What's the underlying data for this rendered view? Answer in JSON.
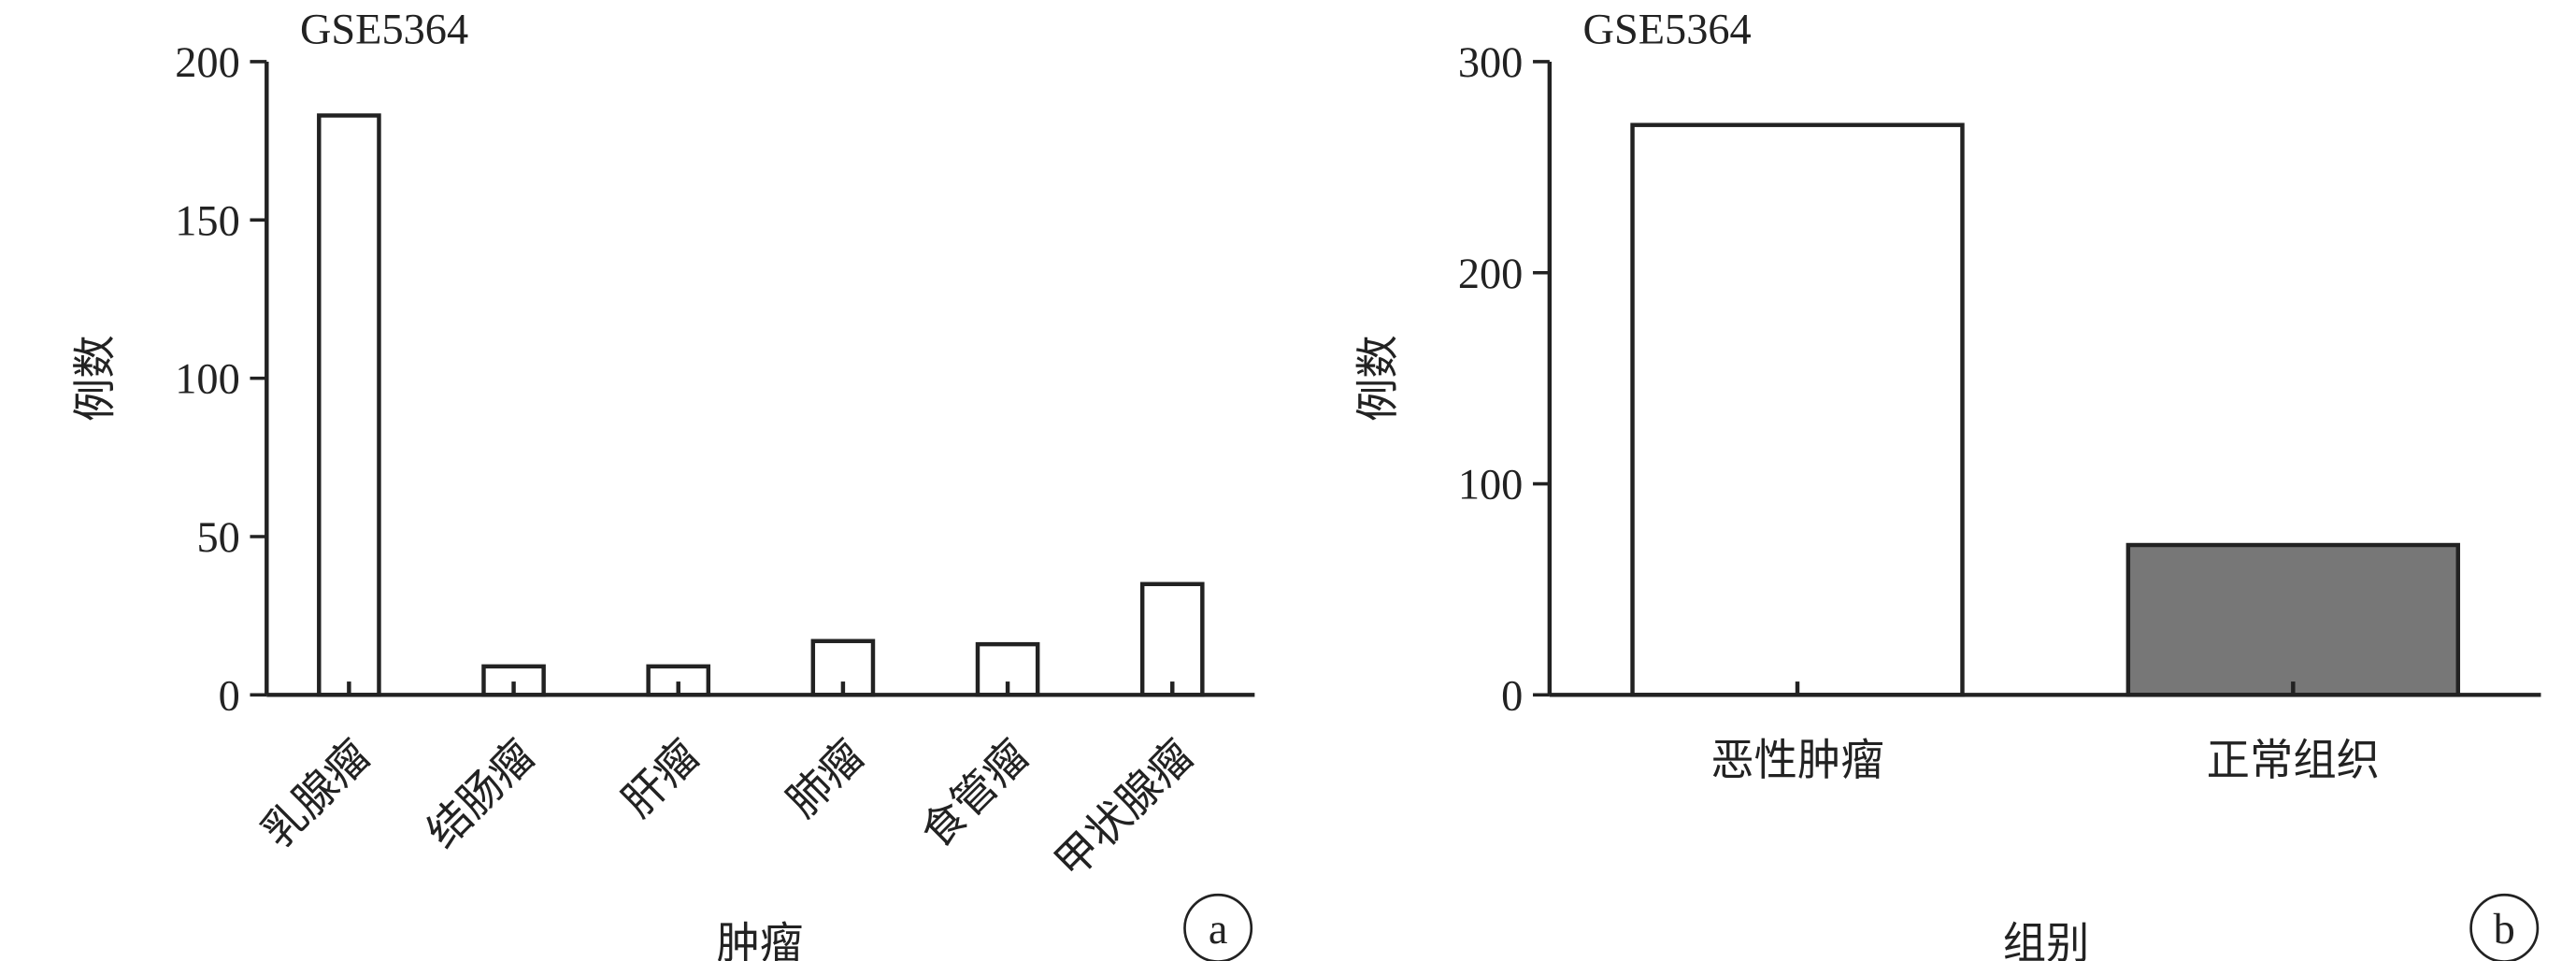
{
  "chart_data": [
    {
      "type": "bar",
      "title": "GSE5364",
      "y_label": "例数",
      "x_label": "肿瘤",
      "panel_label": "a",
      "categories": [
        "乳腺瘤",
        "结肠瘤",
        "肝瘤",
        "肺瘤",
        "食管瘤",
        "甲状腺瘤"
      ],
      "values": [
        183,
        9,
        9,
        17,
        16,
        35
      ],
      "color": "#ffffff",
      "ylim": [
        0,
        200
      ],
      "yticks": [
        0,
        50,
        100,
        150,
        200
      ]
    },
    {
      "type": "bar",
      "title": "GSE5364",
      "y_label": "例数",
      "x_label": "组别",
      "panel_label": "b",
      "categories": [
        "恶性肿瘤",
        "正常组织"
      ],
      "values": [
        270,
        71
      ],
      "colors": [
        "#ffffff",
        "#777777"
      ],
      "ylim": [
        0,
        300
      ],
      "yticks": [
        0,
        100,
        200,
        300
      ]
    }
  ]
}
